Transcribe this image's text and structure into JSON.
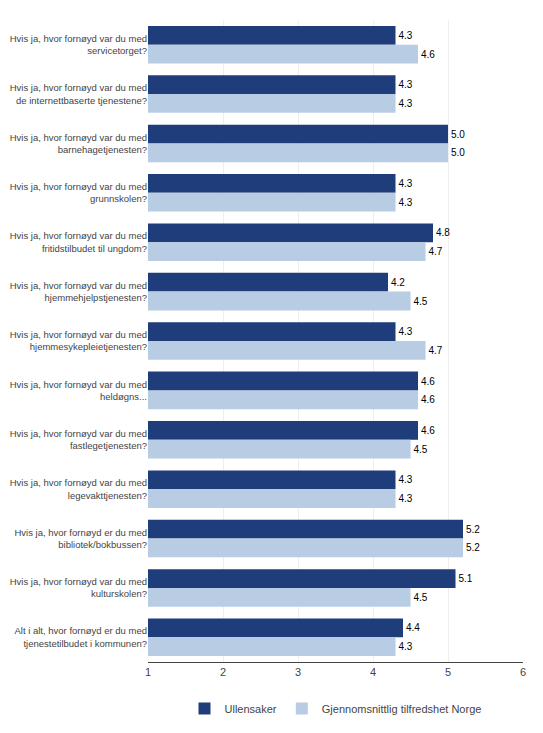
{
  "chart_data": {
    "type": "bar",
    "orientation": "horizontal",
    "categories": [
      "Hvis ja, hvor fornøyd var du med\nservicetorget?",
      "Hvis ja, hvor fornøyd var du med\nde internettbaserte tjenestene?",
      "Hvis ja, hvor fornøyd var du med\nbarnehagetjenesten?",
      "Hvis ja, hvor fornøyd var du med\ngrunnskolen?",
      "Hvis ja, hvor fornøyd var du med\nfritidstilbudet til ungdom?",
      "Hvis ja, hvor fornøyd var du med\nhjemmehjelpstjenesten?",
      "Hvis ja, hvor fornøyd var du med\nhjemmesykepleietjenesten?",
      "Hvis ja, hvor fornøyd var du med\nheldøgns...",
      "Hvis ja, hvor fornøyd var du med\nfastlegetjenesten?",
      "Hvis ja, hvor fornøyd var du med\nlegevakttjenesten?",
      "Hvis ja, hvor fornøyd er du med\nbibliotek/bokbussen?",
      "Hvis ja, hvor fornøyd var du med\nkulturskolen?",
      "Alt i alt, hvor fornøyd er du med\ntjenestetilbudet i kommunen?"
    ],
    "series": [
      {
        "name": "Ullensaker",
        "color": "#1F3D7A",
        "values": [
          4.3,
          4.3,
          5.0,
          4.3,
          4.8,
          4.2,
          4.3,
          4.6,
          4.6,
          4.3,
          5.2,
          5.1,
          4.4
        ],
        "value_labels": [
          "4.3",
          "4.3",
          "5.0",
          "4.3",
          "4.8",
          "4.2",
          "4.3",
          "4.6",
          "4.6",
          "4.3",
          "5.2",
          "5.1",
          "4.4"
        ]
      },
      {
        "name": "Gjennomsnittlig tilfredshet Norge",
        "color": "#B8CCE4",
        "values": [
          4.6,
          4.3,
          5.0,
          4.3,
          4.7,
          4.5,
          4.7,
          4.6,
          4.5,
          4.3,
          5.2,
          4.5,
          4.3
        ],
        "value_labels": [
          "4.6",
          "4.3",
          "5.0",
          "4.3",
          "4.7",
          "4.5",
          "4.7",
          "4.6",
          "4.5",
          "4.3",
          "5.2",
          "4.5",
          "4.3"
        ]
      }
    ],
    "xlim": [
      1,
      6
    ],
    "xticks": [
      1,
      2,
      3,
      4,
      5,
      6
    ],
    "grid": true,
    "legend": "bottom",
    "data_labels": true
  }
}
